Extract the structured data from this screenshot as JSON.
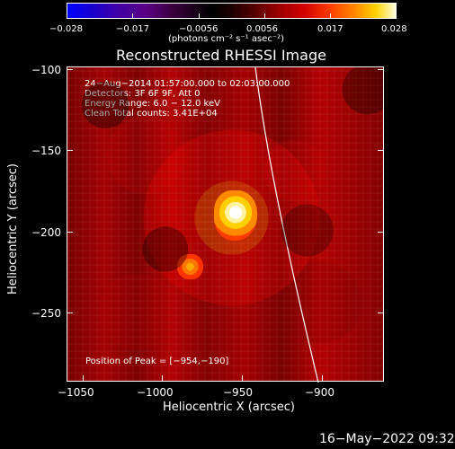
{
  "colorbar": {
    "tick_labels": [
      "−0.028",
      "−0.017",
      "−0.0056",
      "0.0056",
      "0.017",
      "0.028"
    ],
    "unit_label": "(photons cm⁻² s⁻¹ asec⁻²)"
  },
  "plot": {
    "title": "Reconstructed RHESSI Image",
    "info_lines": [
      "24−Aug−2014 01:57:00.000 to 02:03:00.000",
      "Detectors: 3F 6F 9F, Att 0",
      "Energy Range: 6.0 − 12.0 keV",
      "Clean    Total counts: 3.41E+04"
    ],
    "peak_label": "Position of Peak = [−954,−190]",
    "xlabel": "Heliocentric X (arcsec)",
    "ylabel": "Heliocentric Y (arcsec)",
    "x_ticks": [
      "−1050",
      "−1000",
      "−950",
      "−900"
    ],
    "y_ticks": [
      "−100",
      "−150",
      "−200",
      "−250"
    ],
    "x_range": [
      -1070,
      -870
    ],
    "y_range": [
      -290,
      -95
    ]
  },
  "footer": {
    "timestamp": "16−May−2022 09:32"
  }
}
